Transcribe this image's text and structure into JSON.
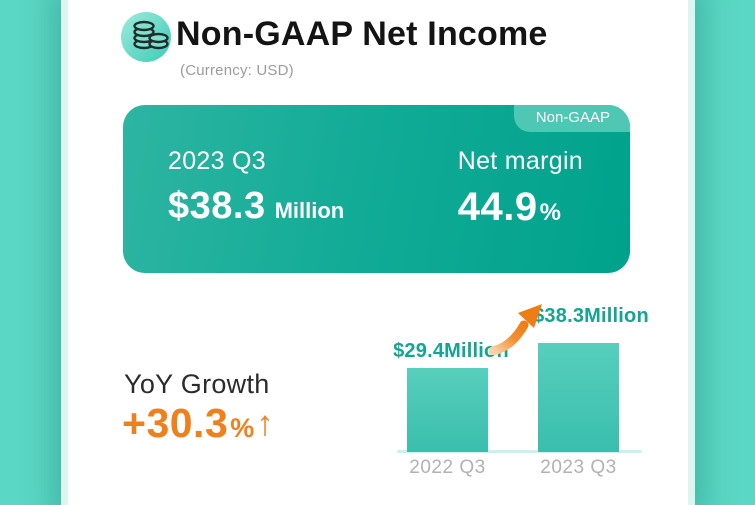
{
  "header": {
    "title": "Non-GAAP Net Income",
    "subtitle": "(Currency: USD)",
    "icon": "coins-icon"
  },
  "hero": {
    "badge": "Non-GAAP",
    "period": "2023 Q3",
    "income_value": "$38.3",
    "income_unit": "Million",
    "margin_label": "Net margin",
    "margin_value": "44.9",
    "margin_unit": "%"
  },
  "growth": {
    "label": "YoY Growth",
    "value": "+30.3",
    "unit": "%",
    "arrow": "↑"
  },
  "chart_data": {
    "type": "bar",
    "categories": [
      "2022 Q3",
      "2023 Q3"
    ],
    "values": [
      29.4,
      38.3
    ],
    "value_labels": [
      "$29.4Million",
      "$38.3Million"
    ],
    "unit": "USD Million",
    "ylim": [
      0,
      45
    ],
    "grid": false,
    "legend": false,
    "annotation": "orange curved growth arrow pointing from 2022 Q3 label up to 2023 Q3 label"
  },
  "colors": {
    "background_teal": "#5bd8c5",
    "panel_halo": "#dcf5ef",
    "hero_gradient_start": "#2db5a2",
    "hero_gradient_end": "#00a28c",
    "badge_teal": "#4fc7b5",
    "bar_teal_top": "#57cfbd",
    "bar_teal_bottom": "#3abead",
    "value_label_teal": "#13a591",
    "growth_orange": "#f0801c",
    "axis_gray": "#b2b2b2"
  }
}
